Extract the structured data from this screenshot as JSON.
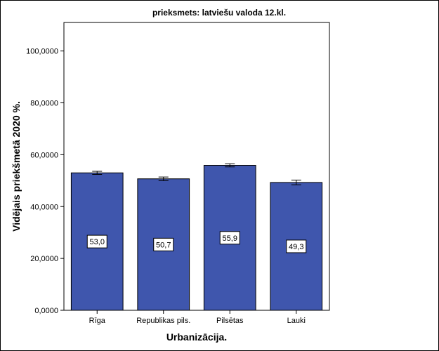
{
  "chart_data": {
    "type": "bar",
    "title": "prieksmets: latviešu valoda 12.kl.",
    "xlabel": "Urbanizācija.",
    "ylabel": "Vidējais priekšmetā 2020 %.",
    "categories": [
      "Rīga",
      "Republikas pils.",
      "Pilsētas",
      "Lauki"
    ],
    "values": [
      53.0,
      50.7,
      55.9,
      49.3
    ],
    "data_labels": [
      "53,0",
      "50,7",
      "55,9",
      "49,3"
    ],
    "error_bars": [
      {
        "low": 52.4,
        "high": 53.6
      },
      {
        "low": 50.0,
        "high": 51.4
      },
      {
        "low": 55.3,
        "high": 56.5
      },
      {
        "low": 48.4,
        "high": 50.2
      }
    ],
    "yticks": [
      0,
      20,
      40,
      60,
      80,
      100
    ],
    "ytick_labels": [
      "0,0000",
      "20,0000",
      "40,0000",
      "60,0000",
      "80,0000",
      "100,0000"
    ],
    "ylim": [
      0,
      111
    ],
    "grid": false,
    "legend": "none",
    "colors": {
      "bar": "#3f56ad",
      "axis": "#000000",
      "background": "#ffffff"
    }
  }
}
